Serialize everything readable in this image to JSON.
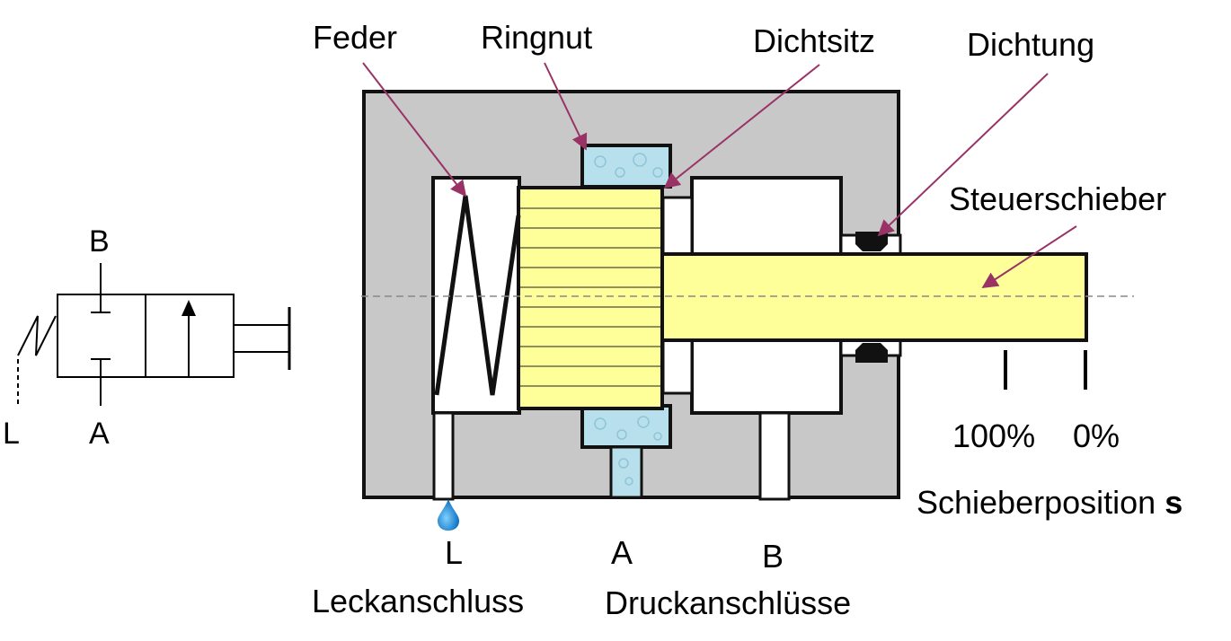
{
  "symbol": {
    "port_b": "B",
    "port_a": "A",
    "port_l": "L"
  },
  "labels": {
    "feder": "Feder",
    "ringnut": "Ringnut",
    "dichtsitz": "Dichtsitz",
    "dichtung": "Dichtung",
    "steuerschieber": "Steuerschieber",
    "pos_100": "100%",
    "pos_0": "0%",
    "schieberposition_text": "Schieberposition",
    "schieberposition_var": "s",
    "port_l": "L",
    "port_a": "A",
    "port_b": "B",
    "leckanschluss": "Leckanschluss",
    "druckanschluesse": "Druckanschlüsse"
  },
  "colors": {
    "housing": "#c8c8c8",
    "spool": "#ffff99",
    "seal_ring": "#b8e0ec",
    "leader_line": "#993366",
    "drop": "#1a8cdc",
    "outline": "#111111"
  }
}
